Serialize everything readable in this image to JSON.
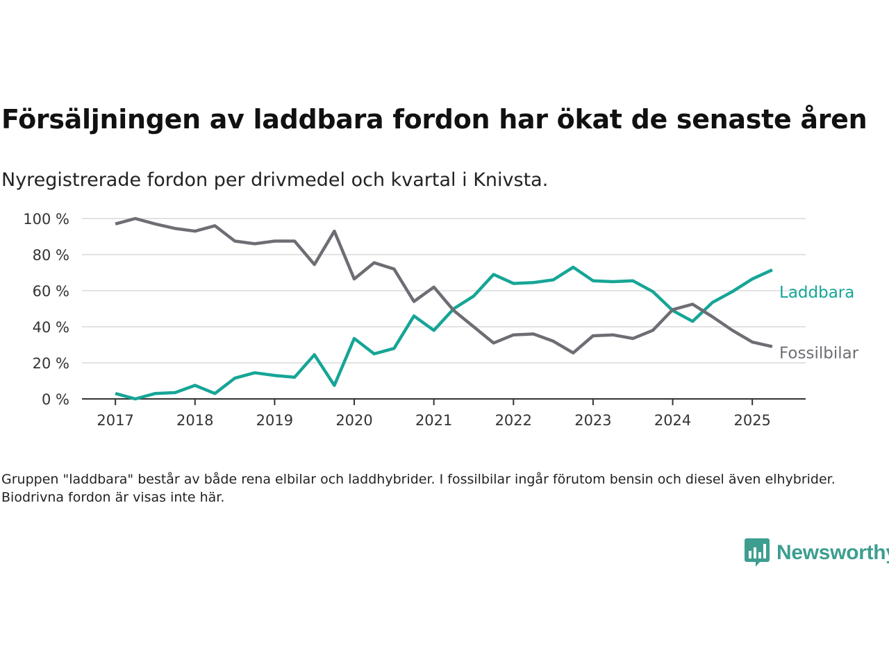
{
  "title": "Försäljningen av laddbara fordon har ökat de senaste åren",
  "subtitle": "Nyregistrerade fordon per drivmedel och kvartal i Knivsta.",
  "footnote": "Gruppen \"laddbara\" består av både rena elbilar och laddhybrider. I fossilbilar ingår förutom bensin och diesel även elhybrider. Biodrivna fordon är visas inte här.",
  "brand": {
    "name": "Newsworthy",
    "icon": "newsworthy-logo-icon",
    "color": "#3d9e90"
  },
  "chart_data": {
    "type": "line",
    "x_ticks": [
      "2017",
      "2018",
      "2019",
      "2020",
      "2021",
      "2022",
      "2023",
      "2024",
      "2025"
    ],
    "y_ticks": [
      "0 %",
      "20 %",
      "40 %",
      "60 %",
      "80 %",
      "100 %"
    ],
    "ylim": [
      0,
      100
    ],
    "xlim": [
      2016.58,
      2025.67
    ],
    "grid": true,
    "legend": "direct labels at line ends",
    "x": [
      2017.0,
      2017.25,
      2017.5,
      2017.75,
      2018.0,
      2018.25,
      2018.5,
      2018.75,
      2019.0,
      2019.25,
      2019.5,
      2019.75,
      2020.0,
      2020.25,
      2020.5,
      2020.75,
      2021.0,
      2021.25,
      2021.5,
      2021.75,
      2022.0,
      2022.25,
      2022.5,
      2022.75,
      2023.0,
      2023.25,
      2023.5,
      2023.75,
      2024.0,
      2024.25,
      2024.5,
      2024.75,
      2025.0,
      2025.25
    ],
    "series": [
      {
        "name": "Laddbara",
        "color": "#16a596",
        "values": [
          3,
          0,
          3,
          3.5,
          7.5,
          3,
          11.5,
          14.5,
          13,
          12,
          24.5,
          7.5,
          33.5,
          25,
          28,
          46,
          38,
          50,
          57,
          69,
          64,
          64.5,
          66,
          73,
          65.5,
          65,
          65.5,
          59.5,
          49,
          43,
          53.5,
          59.5,
          66.5,
          71.5
        ]
      },
      {
        "name": "Fossilbilar",
        "color": "#6e6d74",
        "values": [
          97,
          100,
          97,
          94.5,
          93,
          96,
          87.5,
          86,
          87.5,
          87.5,
          74.5,
          93,
          66.5,
          75.5,
          72,
          54,
          62,
          49,
          40,
          31,
          35.5,
          36,
          32,
          25.5,
          35,
          35.5,
          33.5,
          38,
          49.5,
          52.5,
          45.5,
          38,
          31.5,
          29
        ]
      }
    ]
  }
}
